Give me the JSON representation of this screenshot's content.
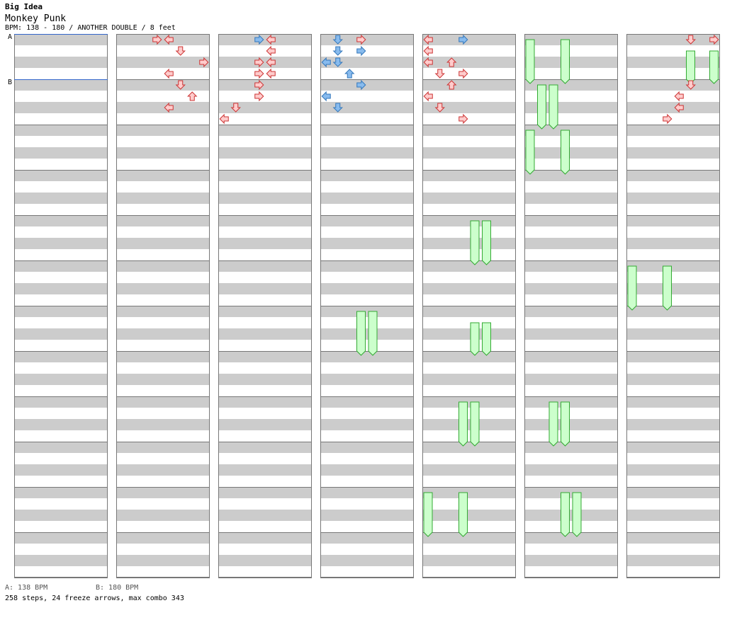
{
  "song": {
    "title": "Big Idea",
    "artist": "Monkey Punk",
    "info": "BPM: 138 - 180 / ANOTHER DOUBLE / 8 feet"
  },
  "bpm_markers": [
    {
      "label": "A",
      "column": 0,
      "row": 0
    },
    {
      "label": "B",
      "column": 0,
      "row": 1
    }
  ],
  "legend": {
    "a": "A: 138 BPM",
    "b": "B: 180 BPM"
  },
  "stats": "258 steps, 24 freeze arrows, max combo 343",
  "colors": {
    "stripe": "#cccccc",
    "border": "#777777",
    "bpm_line": "#3366cc",
    "arrow_red_fill": "#ffcccc",
    "arrow_red_stroke": "#cc3333",
    "arrow_blue_fill": "#88bbee",
    "arrow_blue_stroke": "#3377bb",
    "freeze_fill": "#ccffcc",
    "freeze_stroke": "#33aa33"
  },
  "chart_data": {
    "type": "stepchart",
    "columns": 7,
    "measures_per_column": 12,
    "lanes": [
      "L1",
      "D1",
      "U1",
      "R1",
      "L2",
      "D2",
      "U2",
      "R2"
    ],
    "notes": [
      {
        "c": 1,
        "r": 0,
        "lane": 3,
        "col": "red"
      },
      {
        "c": 1,
        "r": 0,
        "lane": 4,
        "col": "red"
      },
      {
        "c": 1,
        "r": 1,
        "lane": 5,
        "col": "red"
      },
      {
        "c": 1,
        "r": 2,
        "lane": 7,
        "col": "red"
      },
      {
        "c": 1,
        "r": 3,
        "lane": 4,
        "col": "red"
      },
      {
        "c": 1,
        "r": 4,
        "lane": 5,
        "col": "red"
      },
      {
        "c": 1,
        "r": 5,
        "lane": 6,
        "col": "red"
      },
      {
        "c": 1,
        "r": 6,
        "lane": 4,
        "col": "red"
      },
      {
        "c": 2,
        "r": 0,
        "lane": 3,
        "col": "blue"
      },
      {
        "c": 2,
        "r": 0,
        "lane": 4,
        "col": "red"
      },
      {
        "c": 2,
        "r": 1,
        "lane": 4,
        "col": "red"
      },
      {
        "c": 2,
        "r": 2,
        "lane": 3,
        "col": "red"
      },
      {
        "c": 2,
        "r": 2,
        "lane": 4,
        "col": "red"
      },
      {
        "c": 2,
        "r": 3,
        "lane": 3,
        "col": "red"
      },
      {
        "c": 2,
        "r": 3,
        "lane": 4,
        "col": "red"
      },
      {
        "c": 2,
        "r": 4,
        "lane": 3,
        "col": "red"
      },
      {
        "c": 2,
        "r": 5,
        "lane": 3,
        "col": "red"
      },
      {
        "c": 2,
        "r": 6,
        "lane": 1,
        "col": "red"
      },
      {
        "c": 2,
        "r": 7,
        "lane": 0,
        "col": "red"
      },
      {
        "c": 3,
        "r": 0,
        "lane": 1,
        "col": "blue"
      },
      {
        "c": 3,
        "r": 0,
        "lane": 3,
        "col": "red"
      },
      {
        "c": 3,
        "r": 1,
        "lane": 1,
        "col": "blue"
      },
      {
        "c": 3,
        "r": 1,
        "lane": 3,
        "col": "blue"
      },
      {
        "c": 3,
        "r": 2,
        "lane": 0,
        "col": "blue"
      },
      {
        "c": 3,
        "r": 2,
        "lane": 1,
        "col": "blue"
      },
      {
        "c": 3,
        "r": 3,
        "lane": 2,
        "col": "blue"
      },
      {
        "c": 3,
        "r": 4,
        "lane": 3,
        "col": "blue"
      },
      {
        "c": 3,
        "r": 5,
        "lane": 0,
        "col": "blue"
      },
      {
        "c": 3,
        "r": 6,
        "lane": 1,
        "col": "blue"
      },
      {
        "c": 4,
        "r": 0,
        "lane": 0,
        "col": "red"
      },
      {
        "c": 4,
        "r": 0,
        "lane": 3,
        "col": "blue"
      },
      {
        "c": 4,
        "r": 1,
        "lane": 0,
        "col": "red"
      },
      {
        "c": 4,
        "r": 2,
        "lane": 0,
        "col": "red"
      },
      {
        "c": 4,
        "r": 2,
        "lane": 2,
        "col": "red"
      },
      {
        "c": 4,
        "r": 3,
        "lane": 1,
        "col": "red"
      },
      {
        "c": 4,
        "r": 3,
        "lane": 3,
        "col": "red"
      },
      {
        "c": 4,
        "r": 4,
        "lane": 2,
        "col": "red"
      },
      {
        "c": 4,
        "r": 5,
        "lane": 0,
        "col": "red"
      },
      {
        "c": 4,
        "r": 6,
        "lane": 1,
        "col": "red"
      },
      {
        "c": 4,
        "r": 7,
        "lane": 3,
        "col": "red"
      },
      {
        "c": 6,
        "r": 0,
        "lane": 5,
        "col": "red"
      },
      {
        "c": 6,
        "r": 0,
        "lane": 7,
        "col": "red"
      },
      {
        "c": 6,
        "r": 4,
        "lane": 5,
        "col": "red"
      },
      {
        "c": 6,
        "r": 5,
        "lane": 4,
        "col": "red"
      },
      {
        "c": 6,
        "r": 6,
        "lane": 4,
        "col": "red"
      },
      {
        "c": 6,
        "r": 7,
        "lane": 3,
        "col": "red"
      }
    ],
    "freezes": [
      {
        "c": 5,
        "lane": 0,
        "r0": 0,
        "r1": 3.5
      },
      {
        "c": 5,
        "lane": 3,
        "r0": 0,
        "r1": 3.5
      },
      {
        "c": 5,
        "lane": 1,
        "r0": 4,
        "r1": 7.5
      },
      {
        "c": 5,
        "lane": 2,
        "r0": 4,
        "r1": 7.5
      },
      {
        "c": 5,
        "lane": 0,
        "r0": 8,
        "r1": 11.5
      },
      {
        "c": 5,
        "lane": 3,
        "r0": 8,
        "r1": 11.5
      },
      {
        "c": 6,
        "lane": 5,
        "r0": 1,
        "r1": 3.5
      },
      {
        "c": 6,
        "lane": 7,
        "r0": 1,
        "r1": 3.5
      },
      {
        "c": 4,
        "lane": 4,
        "r0": 16,
        "r1": 19.5
      },
      {
        "c": 4,
        "lane": 5,
        "r0": 16,
        "r1": 19.5
      },
      {
        "c": 3,
        "lane": 3,
        "r0": 24,
        "r1": 27.5
      },
      {
        "c": 3,
        "lane": 4,
        "r0": 24,
        "r1": 27.5
      },
      {
        "c": 4,
        "lane": 4,
        "r0": 25,
        "r1": 27.5
      },
      {
        "c": 4,
        "lane": 5,
        "r0": 25,
        "r1": 27.5
      },
      {
        "c": 6,
        "lane": 0,
        "r0": 20,
        "r1": 23.5
      },
      {
        "c": 6,
        "lane": 3,
        "r0": 20,
        "r1": 23.5
      },
      {
        "c": 4,
        "lane": 3,
        "r0": 32,
        "r1": 35.5
      },
      {
        "c": 4,
        "lane": 4,
        "r0": 32,
        "r1": 35.5
      },
      {
        "c": 5,
        "lane": 2,
        "r0": 32,
        "r1": 35.5
      },
      {
        "c": 5,
        "lane": 3,
        "r0": 32,
        "r1": 35.5
      },
      {
        "c": 4,
        "lane": 0,
        "r0": 40,
        "r1": 43.5
      },
      {
        "c": 4,
        "lane": 3,
        "r0": 40,
        "r1": 43.5
      },
      {
        "c": 5,
        "lane": 3,
        "r0": 40,
        "r1": 43.5
      },
      {
        "c": 5,
        "lane": 4,
        "r0": 40,
        "r1": 43.5
      }
    ]
  }
}
